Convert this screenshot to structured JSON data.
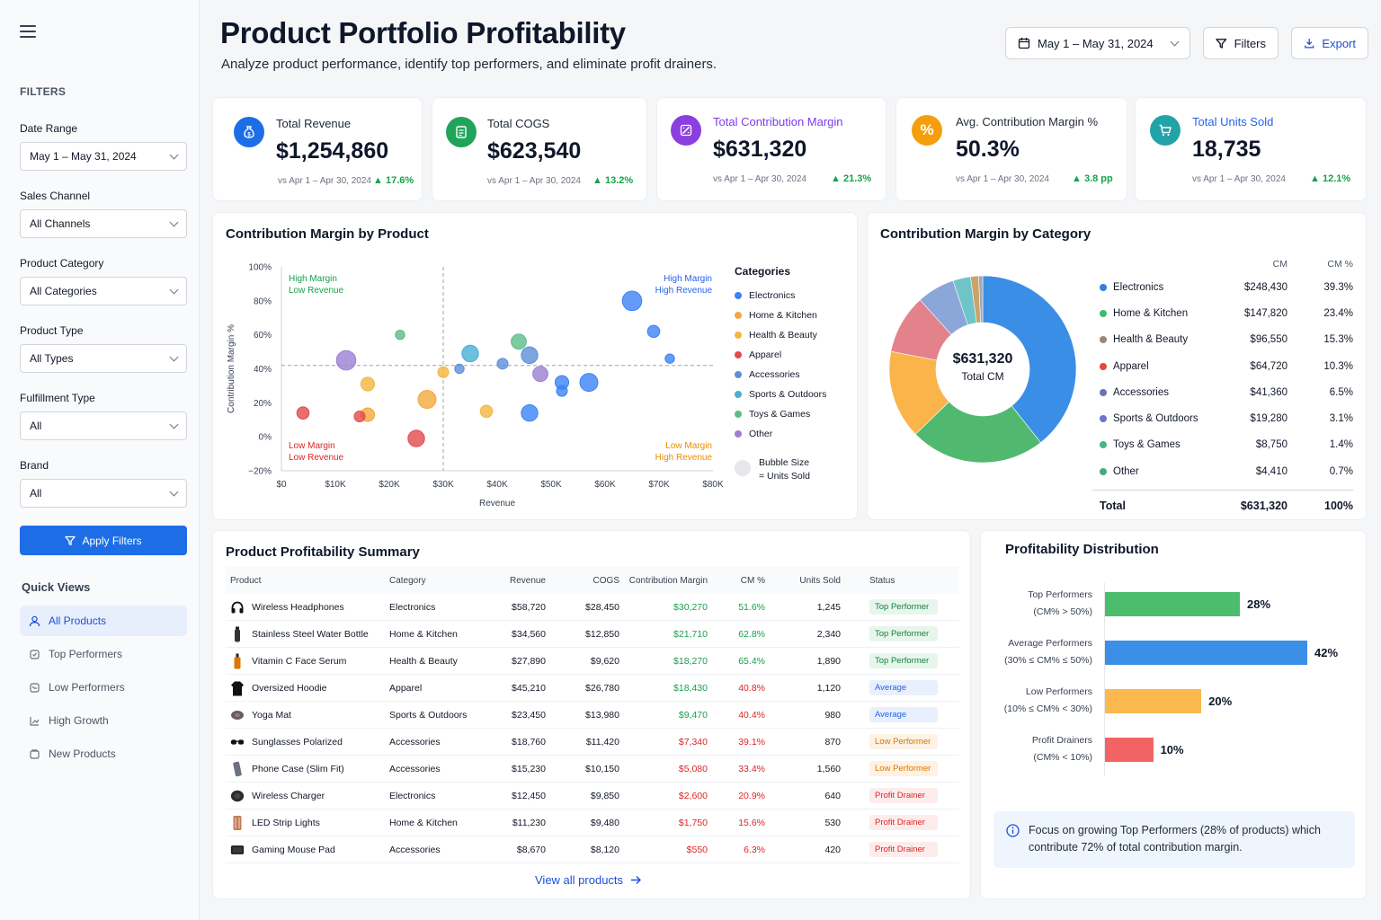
{
  "sidebar": {
    "filters_title": "FILTERS",
    "filters": [
      {
        "label": "Date Range",
        "value": "May 1 – May 31, 2024"
      },
      {
        "label": "Sales Channel",
        "value": "All Channels"
      },
      {
        "label": "Product Category",
        "value": "All Categories"
      },
      {
        "label": "Product Type",
        "value": "All Types"
      },
      {
        "label": "Fulfillment Type",
        "value": "All"
      },
      {
        "label": "Brand",
        "value": "All"
      }
    ],
    "apply_label": "Apply Filters",
    "quick_views_title": "Quick Views",
    "quick_views": [
      "All Products",
      "Top Performers",
      "Low Performers",
      "High Growth",
      "New Products"
    ]
  },
  "header": {
    "title": "Product Portfolio Profitability",
    "subtitle": "Analyze product performance, identify top performers, and eliminate profit drainers.",
    "date_range": "May 1 – May 31, 2024",
    "filters_label": "Filters",
    "export_label": "Export"
  },
  "kpis": [
    {
      "label": "Total Revenue",
      "value": "$1,254,860",
      "vs": "vs Apr 1 – Apr 30, 2024",
      "delta": "17.6%",
      "icon": "dollar-bag-icon",
      "color": "#1d6ee6"
    },
    {
      "label": "Total COGS",
      "value": "$623,540",
      "vs": "vs Apr 1 – Apr 30, 2024",
      "delta": "13.2%",
      "icon": "receipt-icon",
      "color": "#22a35a"
    },
    {
      "label": "Total Contribution Margin",
      "value": "$631,320",
      "vs": "vs Apr 1 – Apr 30, 2024",
      "delta": "21.3%",
      "icon": "margin-icon",
      "color": "#8b3fe0"
    },
    {
      "label": "Avg. Contribution Margin %",
      "value": "50.3%",
      "vs": "vs Apr 1 – Apr 30, 2024",
      "delta": "3.8 pp",
      "icon": "percent-icon",
      "color": "#f59e0b"
    },
    {
      "label": "Total Units Sold",
      "value": "18,735",
      "vs": "vs Apr 1 – Apr 30, 2024",
      "delta": "12.1%",
      "icon": "cart-icon",
      "color": "#22a3a8"
    }
  ],
  "scatter": {
    "title": "Contribution Margin by Product",
    "xlabel": "Revenue",
    "ylabel": "Contribution Margin %",
    "quadrants": {
      "tl1": "High Margin",
      "tl2": "Low Revenue",
      "tr1": "High Margin",
      "tr2": "High Revenue",
      "bl1": "Low Margin",
      "bl2": "Low Revenue",
      "br1": "Low Margin",
      "br2": "High Revenue"
    },
    "legend_title": "Categories",
    "bubble_note_1": "Bubble Size",
    "bubble_note_2": "= Units Sold"
  },
  "chart_data": [
    {
      "type": "scatter",
      "title": "Contribution Margin by Product",
      "xlabel": "Revenue",
      "ylabel": "Contribution Margin %",
      "xlim": [
        0,
        80000
      ],
      "ylim": [
        -20,
        100
      ],
      "x_ticks": [
        "$0",
        "$10K",
        "$20K",
        "$30K",
        "$40K",
        "$50K",
        "$60K",
        "$70K",
        "$80K"
      ],
      "y_ticks": [
        "100%",
        "80%",
        "60%",
        "40%",
        "20%",
        "0%",
        "−20%"
      ],
      "series": [
        {
          "name": "Electronics",
          "color": "#3b82f6",
          "points": [
            [
              65000,
              80
            ],
            [
              57000,
              32
            ],
            [
              52000,
              32
            ],
            [
              69000,
              62
            ],
            [
              52000,
              27
            ],
            [
              46000,
              14
            ],
            [
              72000,
              46
            ]
          ]
        },
        {
          "name": "Home & Kitchen",
          "color": "#f2a93b",
          "points": [
            [
              27000,
              22
            ],
            [
              16000,
              13
            ]
          ]
        },
        {
          "name": "Health & Beauty",
          "color": "#f5b53f",
          "points": [
            [
              16000,
              31
            ],
            [
              38000,
              15
            ],
            [
              30000,
              38
            ]
          ]
        },
        {
          "name": "Apparel",
          "color": "#e14b4b",
          "points": [
            [
              4000,
              14
            ],
            [
              14500,
              12
            ],
            [
              25000,
              -1
            ]
          ]
        },
        {
          "name": "Accessories",
          "color": "#5b8fd9",
          "points": [
            [
              41000,
              43
            ],
            [
              46000,
              48
            ],
            [
              33000,
              40
            ]
          ]
        },
        {
          "name": "Sports & Outdoors",
          "color": "#4aaed5",
          "points": [
            [
              35000,
              49
            ]
          ]
        },
        {
          "name": "Toys & Games",
          "color": "#5dbd86",
          "points": [
            [
              22000,
              60
            ],
            [
              44000,
              56
            ]
          ]
        },
        {
          "name": "Other",
          "color": "#9b7fd4",
          "points": [
            [
              48000,
              37
            ],
            [
              12000,
              45
            ]
          ]
        }
      ]
    },
    {
      "type": "pie",
      "title": "Contribution Margin by Category",
      "center_value": "$631,320",
      "center_label": "Total CM",
      "col_headers": [
        "CM",
        "CM %"
      ],
      "categories": [
        "Electronics",
        "Home & Kitchen",
        "Health & Beauty",
        "Apparel",
        "Accessories",
        "Sports & Outdoors",
        "Toys & Games",
        "Other"
      ],
      "values": [
        248430,
        147820,
        96550,
        64720,
        41360,
        19280,
        8750,
        4410
      ],
      "values_text": [
        "$248,430",
        "$147,820",
        "$96,550",
        "$64,720",
        "$41,360",
        "$19,280",
        "$8,750",
        "$4,410"
      ],
      "percents": [
        39.3,
        23.4,
        15.3,
        10.3,
        6.5,
        3.1,
        1.4,
        0.7
      ],
      "percents_text": [
        "39.3%",
        "23.4%",
        "15.3%",
        "10.3%",
        "6.5%",
        "3.1%",
        "1.4%",
        "0.7%"
      ],
      "legend_colors": [
        "#2f80e0",
        "#3fb970",
        "#9a8778",
        "#e5483f",
        "#6874b8",
        "#6a75c8",
        "#44b881",
        "#4aa97a"
      ],
      "slice_colors": [
        "#3b8ee6",
        "#50b96f",
        "#fbb44a",
        "#e4828c",
        "#8ba6d8",
        "#6ec4c9",
        "#c9a36a",
        "#a0a8b8"
      ],
      "total_label": "Total",
      "total_value": "$631,320",
      "total_pct": "100%"
    },
    {
      "type": "bar",
      "title": "Profitability Distribution",
      "categories": [
        "Top Performers",
        "Average Performers",
        "Low Performers",
        "Profit Drainers"
      ],
      "ranges": [
        "(CM% > 50%)",
        "(30% ≤ CM% ≤ 50%)",
        "(10% ≤ CM% < 30%)",
        "(CM% < 10%)"
      ],
      "values": [
        28,
        42,
        20,
        10
      ],
      "labels": [
        "28%",
        "42%",
        "20%",
        "10%"
      ],
      "colors": [
        "#4cbc6d",
        "#3b8fe6",
        "#fbb84c",
        "#f26464"
      ]
    }
  ],
  "table": {
    "title": "Product Profitability Summary",
    "columns": [
      "Product",
      "Category",
      "Revenue",
      "COGS",
      "Contribution Margin",
      "CM %",
      "Units Sold",
      "Status"
    ],
    "rows": [
      {
        "product": "Wireless Headphones",
        "category": "Electronics",
        "revenue": "$58,720",
        "cogs": "$28,450",
        "cm": "$30,270",
        "pct": "51.6%",
        "units": "1,245",
        "status": "Top Performer",
        "tone": "top",
        "icon": "headphones-icon"
      },
      {
        "product": "Stainless Steel Water Bottle",
        "category": "Home & Kitchen",
        "revenue": "$34,560",
        "cogs": "$12,850",
        "cm": "$21,710",
        "pct": "62.8%",
        "units": "2,340",
        "status": "Top Performer",
        "tone": "top",
        "icon": "bottle-icon"
      },
      {
        "product": "Vitamin C Face Serum",
        "category": "Health & Beauty",
        "revenue": "$27,890",
        "cogs": "$9,620",
        "cm": "$18,270",
        "pct": "65.4%",
        "units": "1,890",
        "status": "Top Performer",
        "tone": "top",
        "icon": "serum-icon"
      },
      {
        "product": "Oversized Hoodie",
        "category": "Apparel",
        "revenue": "$45,210",
        "cogs": "$26,780",
        "cm": "$18,430",
        "pct": "40.8%",
        "units": "1,120",
        "status": "Average",
        "tone": "avg",
        "icon": "hoodie-icon"
      },
      {
        "product": "Yoga Mat",
        "category": "Sports & Outdoors",
        "revenue": "$23,450",
        "cogs": "$13,980",
        "cm": "$9,470",
        "pct": "40.4%",
        "units": "980",
        "status": "Average",
        "tone": "avg",
        "icon": "yoga-mat-icon"
      },
      {
        "product": "Sunglasses Polarized",
        "category": "Accessories",
        "revenue": "$18,760",
        "cogs": "$11,420",
        "cm": "$7,340",
        "pct": "39.1%",
        "units": "870",
        "status": "Low Performer",
        "tone": "low",
        "icon": "sunglasses-icon"
      },
      {
        "product": "Phone Case (Slim Fit)",
        "category": "Accessories",
        "revenue": "$15,230",
        "cogs": "$10,150",
        "cm": "$5,080",
        "pct": "33.4%",
        "units": "1,560",
        "status": "Low Performer",
        "tone": "low",
        "icon": "phone-case-icon"
      },
      {
        "product": "Wireless Charger",
        "category": "Electronics",
        "revenue": "$12,450",
        "cogs": "$9,850",
        "cm": "$2,600",
        "pct": "20.9%",
        "units": "640",
        "status": "Profit Drainer",
        "tone": "drain",
        "icon": "charger-icon"
      },
      {
        "product": "LED Strip Lights",
        "category": "Home & Kitchen",
        "revenue": "$11,230",
        "cogs": "$9,480",
        "cm": "$1,750",
        "pct": "15.6%",
        "units": "530",
        "status": "Profit Drainer",
        "tone": "drain",
        "icon": "led-strip-icon"
      },
      {
        "product": "Gaming Mouse Pad",
        "category": "Accessories",
        "revenue": "$8,670",
        "cogs": "$8,120",
        "cm": "$550",
        "pct": "6.3%",
        "units": "420",
        "status": "Profit Drainer",
        "tone": "drain",
        "icon": "mouse-pad-icon"
      }
    ],
    "view_all": "View all products"
  },
  "distribution": {
    "title": "Profitability Distribution",
    "insight": "Focus on growing Top Performers (28% of products) which contribute 72% of total contribution margin."
  }
}
